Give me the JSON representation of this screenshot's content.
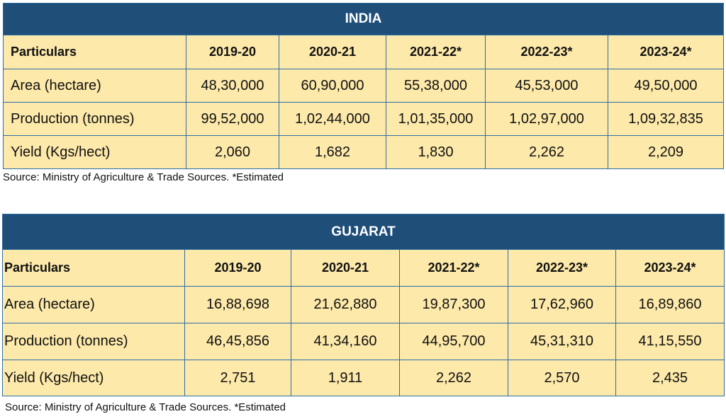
{
  "india": {
    "title": "INDIA",
    "headers": [
      "Particulars",
      "2019-20",
      "2020-21",
      "2021-22*",
      "2022-23*",
      "2023-24*"
    ],
    "rows": [
      [
        "Area (hectare)",
        "48,30,000",
        "60,90,000",
        "55,38,000",
        "45,53,000",
        "49,50,000"
      ],
      [
        "Production (tonnes)",
        "99,52,000",
        "1,02,44,000",
        "1,01,35,000",
        "1,02,97,000",
        "1,09,32,835"
      ],
      [
        "Yield (Kgs/hect)",
        "2,060",
        "1,682",
        "1,830",
        "2,262",
        "2,209"
      ]
    ],
    "source": "Source: Ministry of Agriculture & Trade Sources. *Estimated"
  },
  "gujarat": {
    "title": "GUJARAT",
    "headers": [
      "Particulars",
      "2019-20",
      "2020-21",
      "2021-22*",
      "2022-23*",
      "2023-24*"
    ],
    "rows": [
      [
        "Area (hectare)",
        "16,88,698",
        "21,62,880",
        "19,87,300",
        "17,62,960",
        "16,89,860"
      ],
      [
        "Production (tonnes)",
        "46,45,856",
        "41,34,160",
        "44,95,700",
        "45,31,310",
        "41,15,550"
      ],
      [
        "Yield (Kgs/hect)",
        "2,751",
        "1,911",
        "2,262",
        "2,570",
        "2,435"
      ]
    ],
    "source": "Source: Ministry of Agriculture & Trade Sources. *Estimated"
  }
}
